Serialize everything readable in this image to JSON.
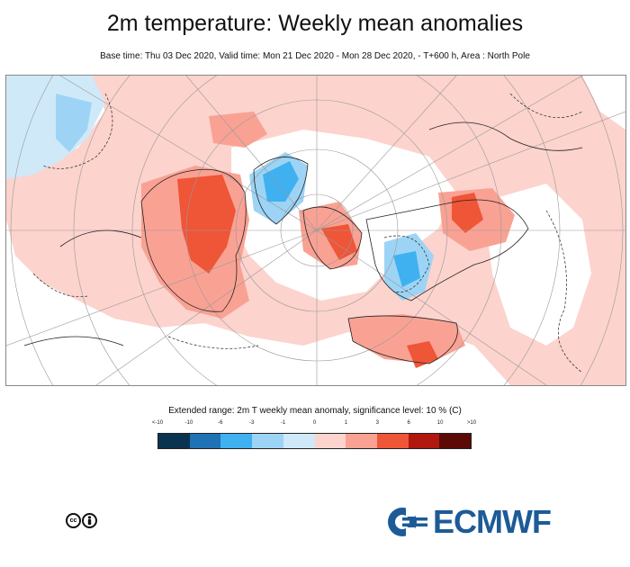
{
  "header": {
    "title": "2m temperature: Weekly mean anomalies",
    "subtitle": "Base time: Thu 03 Dec 2020, Valid time: Mon 21 Dec 2020 - Mon 28 Dec 2020, - T+600 h, Area : North Pole"
  },
  "legend": {
    "title": "Extended range: 2m T weekly mean anomaly, significance level: 10 % (C)",
    "ticks": [
      "<-10",
      "-10",
      "-6",
      "-3",
      "-1",
      "0",
      "1",
      "3",
      "6",
      "10",
      ">10"
    ],
    "colors": [
      "#0a3350",
      "#1f72b3",
      "#3fb1f0",
      "#9dd4f5",
      "#cfe9f8",
      "#fcd3cd",
      "#f9a294",
      "#ef5537",
      "#b0170f",
      "#5c0a06"
    ]
  },
  "footer": {
    "license_icon": "creative-commons-by-icon",
    "logo_text": "ECMWF"
  },
  "map": {
    "ocean_color": "#ffffff",
    "warm_colors": [
      "#fcd3cd",
      "#f9a294",
      "#ef5537"
    ],
    "cold_colors": [
      "#cfe9f8",
      "#9dd4f5",
      "#3fb1f0"
    ]
  }
}
